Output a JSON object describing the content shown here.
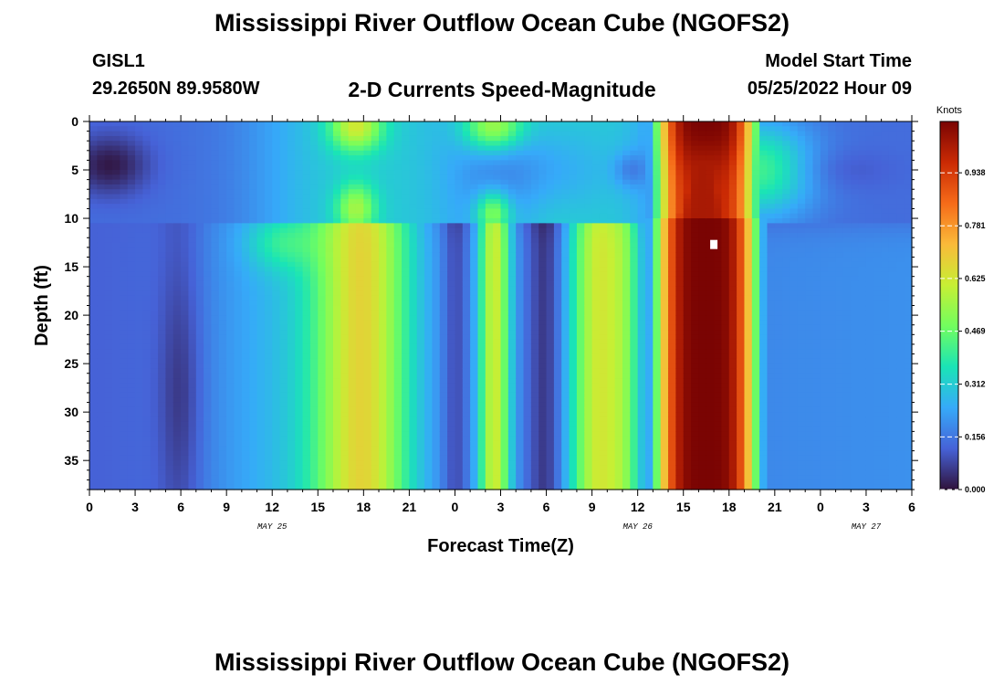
{
  "header": {
    "title": "Mississippi River Outflow Ocean Cube (NGOFS2)",
    "station": "GISL1",
    "coords": "29.2650N  89.9580W",
    "subtitle": "2-D Currents Speed-Magnitude",
    "model_start_label": "Model Start Time",
    "model_start_value": "05/25/2022 Hour 09"
  },
  "footer": {
    "title": "Mississippi River Outflow Ocean Cube (NGOFS2)"
  },
  "chart_data": {
    "type": "heatmap",
    "title": "2-D Currents Speed-Magnitude",
    "xlabel": "Forecast Time(Z)",
    "ylabel": "Depth (ft)",
    "x_tick_labels": [
      "0",
      "3",
      "6",
      "9",
      "12",
      "15",
      "18",
      "21",
      "0",
      "3",
      "6",
      "9",
      "12",
      "15",
      "18",
      "21",
      "0",
      "3",
      "6"
    ],
    "x_range_hours": [
      0,
      54
    ],
    "date_labels": [
      {
        "text": "MAY 25",
        "hour": 12
      },
      {
        "text": "MAY 26",
        "hour": 36
      },
      {
        "text": "MAY 27",
        "hour": 51
      }
    ],
    "y_tick_labels": [
      "0",
      "5",
      "10",
      "15",
      "20",
      "25",
      "30",
      "35"
    ],
    "y_range_ft": [
      0,
      38
    ],
    "colorbar": {
      "unit": "Knots",
      "min": 0.0,
      "max": 1.09,
      "tick_labels": [
        "0.000",
        "0.156",
        "0.312",
        "0.469",
        "0.625",
        "0.781",
        "0.938"
      ],
      "colormap": [
        "#30123b",
        "#4662d7",
        "#36aaf9",
        "#1ae4b6",
        "#72fe5e",
        "#c7ef34",
        "#faba39",
        "#f66b19",
        "#ca2a04",
        "#7a0403"
      ]
    },
    "features": [
      {
        "desc": "weak surface minimum",
        "hour": 1,
        "depth_ft": 5,
        "speed_knots": 0.02
      },
      {
        "desc": "deep minimum column",
        "hour": 6,
        "depth_ft": 27,
        "speed_knots": 0.02
      },
      {
        "desc": "subsurface maximum",
        "hour": 18,
        "depth_ft": 22,
        "speed_knots": 0.6
      },
      {
        "desc": "subsurface maximum",
        "hour": 27,
        "depth_ft": 16,
        "speed_knots": 0.7
      },
      {
        "desc": "subsurface maximum",
        "hour": 32,
        "depth_ft": 16,
        "speed_knots": 0.6
      },
      {
        "desc": "core maximum",
        "hour": 41,
        "depth_ft": 16,
        "speed_knots": 1.09
      }
    ]
  }
}
